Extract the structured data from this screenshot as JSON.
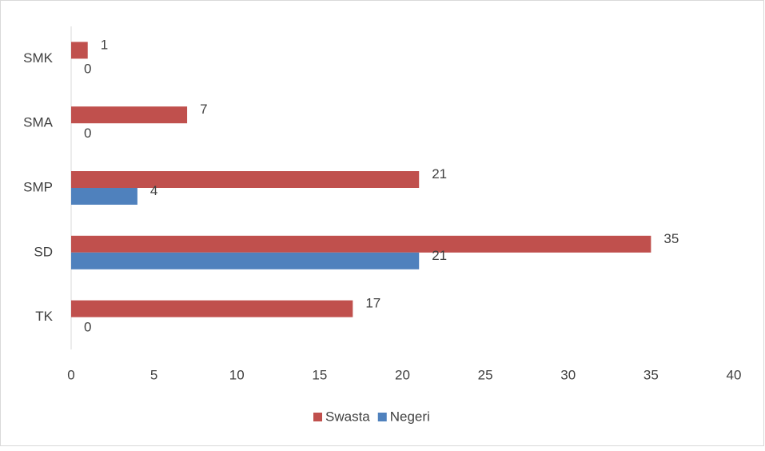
{
  "chart_data": {
    "type": "hbar",
    "categories": [
      "SMK",
      "SMA",
      "SMP",
      "SD",
      "TK"
    ],
    "series": [
      {
        "name": "Swasta",
        "color": "#c0504d",
        "values": [
          1,
          7,
          21,
          35,
          17
        ]
      },
      {
        "name": "Negeri",
        "color": "#4f81bd",
        "values": [
          0,
          0,
          4,
          21,
          0
        ]
      }
    ],
    "xlim": [
      0,
      40
    ],
    "xticks": [
      0,
      5,
      10,
      15,
      20,
      25,
      30,
      35,
      40
    ],
    "legend": "bottom"
  }
}
